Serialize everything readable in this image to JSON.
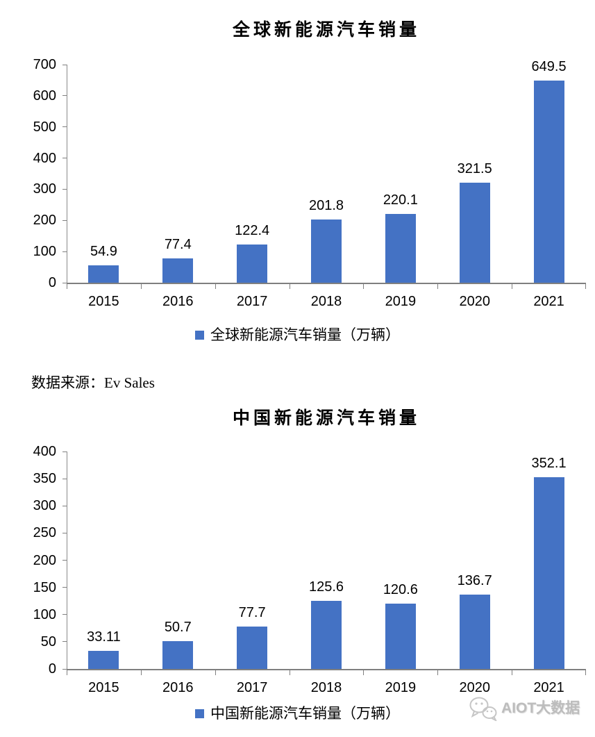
{
  "source_note": "数据来源：Ev Sales",
  "watermark": {
    "text": "AIOT大数据",
    "icon": "wechat-logo-icon",
    "color": "#bdbdbd"
  },
  "chart_data": [
    {
      "type": "bar",
      "title": "全球新能源汽车销量",
      "categories": [
        "2015",
        "2016",
        "2017",
        "2018",
        "2019",
        "2020",
        "2021"
      ],
      "values": [
        54.9,
        77.4,
        122.4,
        201.8,
        220.1,
        321.5,
        649.5
      ],
      "data_labels": [
        "54.9",
        "77.4",
        "122.4",
        "201.8",
        "220.1",
        "321.5",
        "649.5"
      ],
      "legend": "全球新能源汽车销量（万辆）",
      "legend_position": "bottom",
      "ylabel": "",
      "xlabel": "",
      "ylim": [
        0,
        700
      ],
      "yticks": [
        0,
        100,
        200,
        300,
        400,
        500,
        600,
        700
      ],
      "grid": false,
      "bar_color": "#4472C4",
      "axis_color": "#7f7f7f"
    },
    {
      "type": "bar",
      "title": "中国新能源汽车销量",
      "categories": [
        "2015",
        "2016",
        "2017",
        "2018",
        "2019",
        "2020",
        "2021"
      ],
      "values": [
        33.11,
        50.7,
        77.7,
        125.6,
        120.6,
        136.7,
        352.1
      ],
      "data_labels": [
        "33.11",
        "50.7",
        "77.7",
        "125.6",
        "120.6",
        "136.7",
        "352.1"
      ],
      "legend": "中国新能源汽车销量（万辆）",
      "legend_position": "bottom",
      "ylabel": "",
      "xlabel": "",
      "ylim": [
        0,
        400
      ],
      "yticks": [
        0,
        50,
        100,
        150,
        200,
        250,
        300,
        350,
        400
      ],
      "grid": false,
      "bar_color": "#4472C4",
      "axis_color": "#7f7f7f"
    }
  ]
}
